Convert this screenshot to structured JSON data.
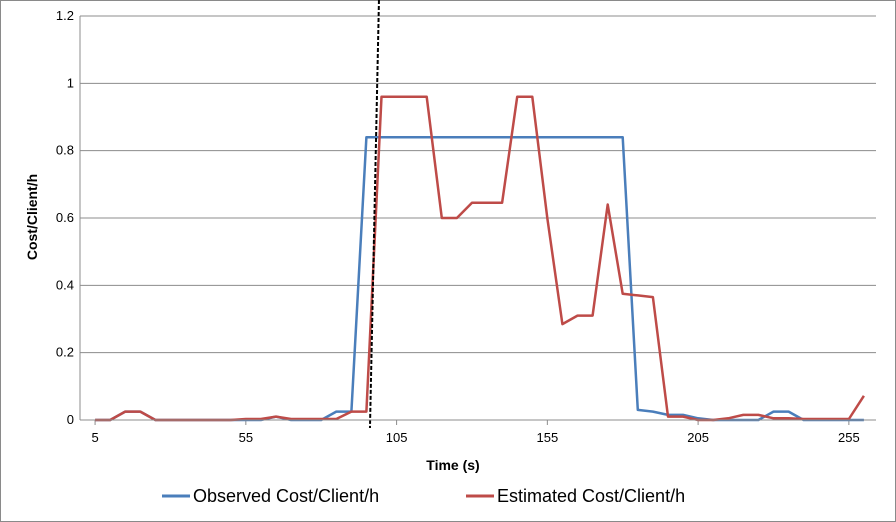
{
  "chart_data": {
    "type": "line",
    "xlabel": "Time (s)",
    "ylabel": "Cost/Client/h",
    "xlim": [
      0,
      264
    ],
    "ylim": [
      0,
      1.2
    ],
    "x_ticks": [
      5,
      55,
      105,
      155,
      205,
      255
    ],
    "y_ticks": [
      "0",
      "0.2",
      "0.4",
      "0.6",
      "0.8",
      "1",
      "1.2"
    ],
    "grid": "horizontal",
    "legend_position": "bottom",
    "marker_line": {
      "x": 96.5,
      "style": "dashed",
      "color": "#000000"
    },
    "series": [
      {
        "name": "Observed Cost/Client/h",
        "color": "#4a7ebb",
        "x": [
          5,
          10,
          15,
          20,
          25,
          30,
          35,
          40,
          45,
          50,
          55,
          60,
          65,
          70,
          75,
          80,
          85,
          90,
          95,
          100,
          105,
          110,
          115,
          120,
          125,
          130,
          135,
          140,
          145,
          150,
          155,
          160,
          165,
          170,
          175,
          180,
          185,
          190,
          195,
          200,
          205,
          210,
          215,
          220,
          225,
          230,
          235,
          240,
          245,
          250,
          255,
          260
        ],
        "values": [
          0,
          0,
          0.025,
          0.025,
          0,
          0,
          0,
          0,
          0,
          0,
          0,
          0,
          0.01,
          0,
          0,
          0,
          0.025,
          0.025,
          0.84,
          0.84,
          0.84,
          0.84,
          0.84,
          0.84,
          0.84,
          0.84,
          0.84,
          0.84,
          0.84,
          0.84,
          0.84,
          0.84,
          0.84,
          0.84,
          0.84,
          0.84,
          0.03,
          0.025,
          0.015,
          0.015,
          0.005,
          0,
          0,
          0,
          0,
          0.025,
          0.025,
          0,
          0,
          0,
          0,
          0
        ]
      },
      {
        "name": "Estimated Cost/Client/h",
        "color": "#be4b48",
        "x": [
          5,
          10,
          15,
          20,
          25,
          30,
          35,
          40,
          45,
          50,
          55,
          60,
          65,
          70,
          75,
          80,
          85,
          90,
          95,
          100,
          105,
          110,
          115,
          120,
          125,
          130,
          135,
          140,
          145,
          150,
          155,
          160,
          165,
          170,
          175,
          180,
          185,
          190,
          195,
          200,
          205,
          210,
          215,
          220,
          225,
          230,
          235,
          240,
          245,
          250,
          255,
          260
        ],
        "values": [
          0,
          0,
          0.025,
          0.025,
          0,
          0,
          0,
          0,
          0,
          0,
          0.003,
          0.003,
          0.01,
          0.003,
          0.003,
          0.003,
          0.003,
          0.025,
          0.025,
          0.96,
          0.96,
          0.96,
          0.96,
          0.6,
          0.6,
          0.645,
          0.645,
          0.645,
          0.96,
          0.96,
          0.6,
          0.285,
          0.31,
          0.31,
          0.64,
          0.375,
          0.37,
          0.365,
          0.01,
          0.01,
          0,
          0,
          0.005,
          0.015,
          0.015,
          0.005,
          0.005,
          0.003,
          0.003,
          0.003,
          0.003,
          0.072
        ]
      }
    ]
  }
}
